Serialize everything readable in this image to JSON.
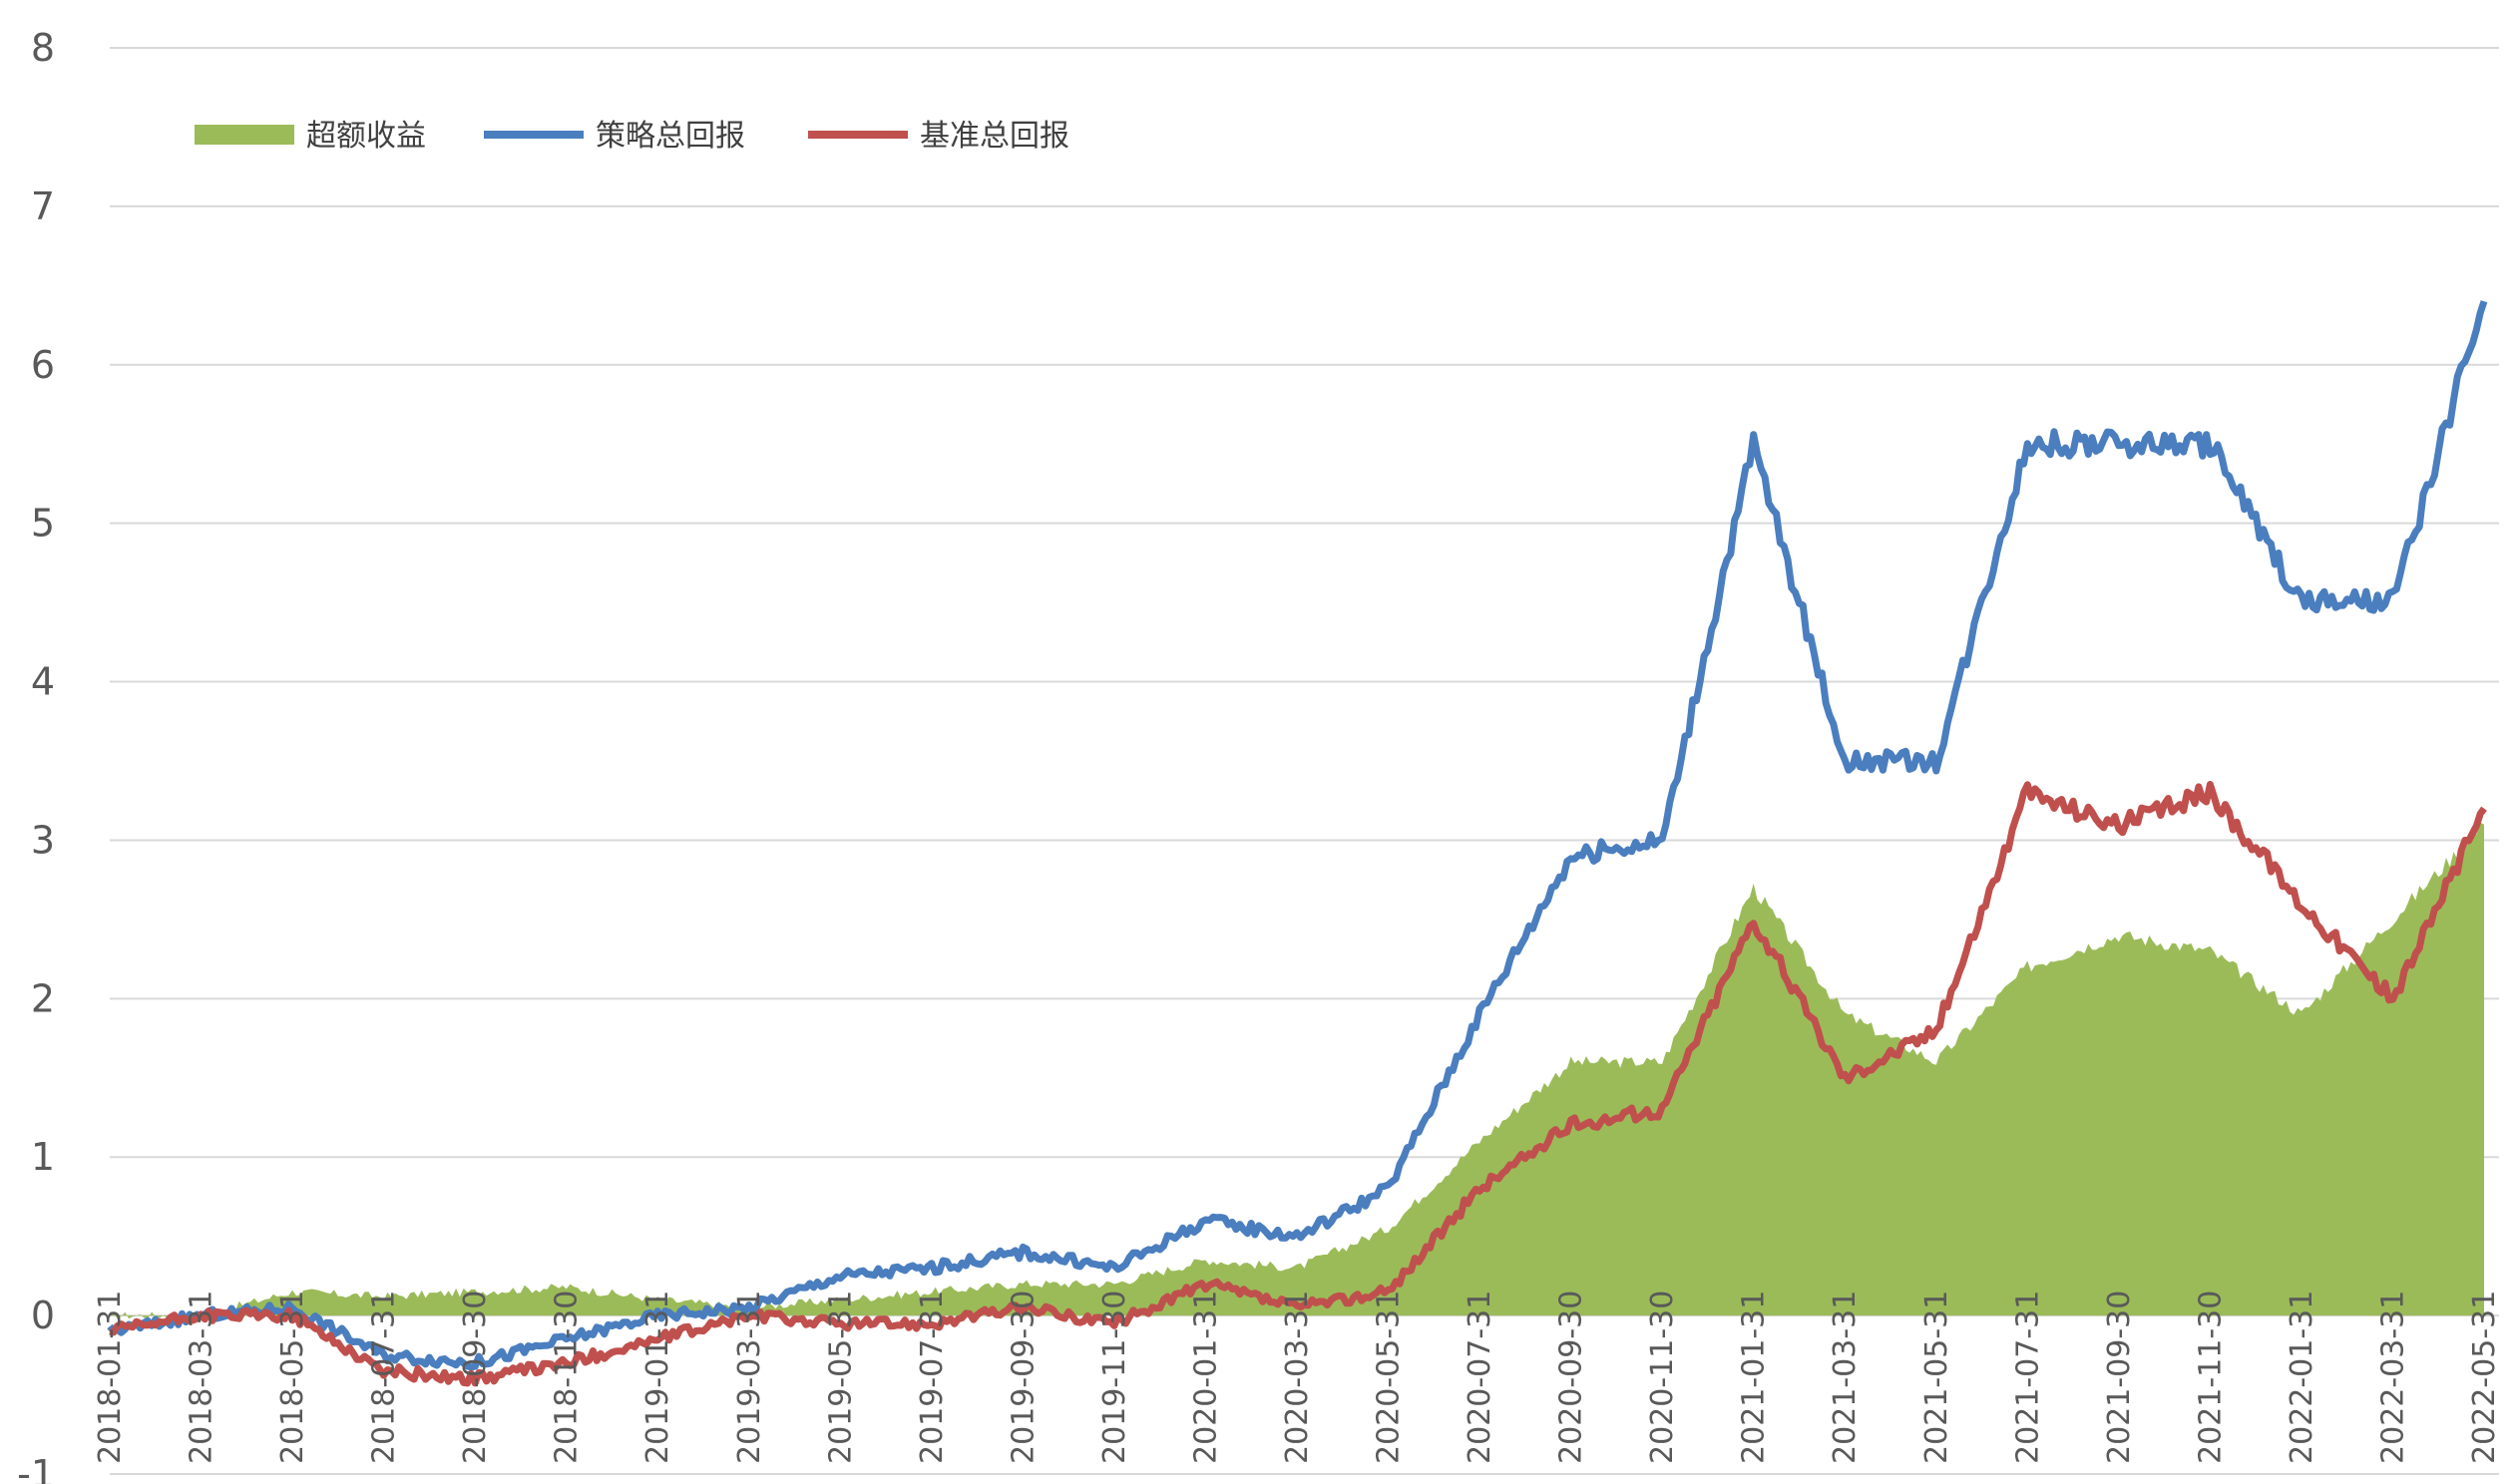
{
  "chart_data": {
    "type": "line",
    "title": "",
    "xlabel": "",
    "ylabel": "",
    "ylim": [
      -1,
      8
    ],
    "yticks": [
      "-1",
      "0",
      "1",
      "2",
      "3",
      "4",
      "5",
      "6",
      "7",
      "8"
    ],
    "grid": true,
    "legend_position": "top-left",
    "categories": [
      "2018-01-31",
      "2018-03-31",
      "2018-05-31",
      "2018-07-31",
      "2018-09-30",
      "2018-11-30",
      "2019-01-31",
      "2019-03-31",
      "2019-05-31",
      "2019-07-31",
      "2019-09-30",
      "2019-11-30",
      "2020-01-31",
      "2020-03-31",
      "2020-05-31",
      "2020-07-31",
      "2020-09-30",
      "2020-11-30",
      "2021-01-31",
      "2021-03-31",
      "2021-05-31",
      "2021-07-31",
      "2021-09-30",
      "2021-11-30",
      "2022-01-31",
      "2022-03-31",
      "2022-05-31"
    ],
    "tick_labels": [
      "2018-01-31",
      "2018-03-31",
      "2018-05-31",
      "2018-07-31",
      "2018-09-30",
      "2018-11-30",
      "2019-01-31",
      "2019-03-31",
      "2019-05-31",
      "2019-07-31",
      "2019-09-30",
      "2019-11-30",
      "2020-01-31",
      "2020-03-31",
      "2020-05-31",
      "2020-07-31",
      "2020-09-30",
      "2020-11-30",
      "2021-01-31",
      "2021-03-31",
      "2021-05-31",
      "2021-07-31",
      "2021-09-30",
      "2021-11-30",
      "2022-01-31",
      "2022-03-31",
      "2022-05-31"
    ],
    "series": [
      {
        "name": "超额收益",
        "kind": "area",
        "color": "#9bbb59",
        "values": [
          0,
          0,
          0.15,
          0.12,
          0.15,
          0.18,
          0.1,
          0.05,
          0.1,
          0.15,
          0.2,
          0.2,
          0.35,
          0.3,
          0.55,
          1.1,
          1.6,
          1.6,
          2.7,
          1.9,
          1.6,
          2.2,
          2.4,
          2.3,
          1.9,
          2.5,
          3.1
        ]
      },
      {
        "name": "策略总回报",
        "kind": "line",
        "color": "#4a7ebf",
        "values": [
          -0.1,
          0,
          0.05,
          -0.25,
          -0.3,
          -0.15,
          0,
          0.05,
          0.25,
          0.3,
          0.4,
          0.3,
          0.6,
          0.5,
          0.8,
          1.9,
          2.9,
          3.0,
          5.5,
          3.5,
          3.5,
          5.5,
          5.5,
          5.5,
          4.5,
          4.5,
          6.4
        ]
      },
      {
        "name": "基准总回报",
        "kind": "line",
        "color": "#c0504d",
        "values": [
          -0.1,
          0,
          0,
          -0.35,
          -0.4,
          -0.3,
          -0.15,
          0,
          -0.05,
          -0.05,
          0.05,
          -0.05,
          0.2,
          0.05,
          0.15,
          0.8,
          1.2,
          1.3,
          2.5,
          1.5,
          1.8,
          3.3,
          3.1,
          3.3,
          2.6,
          2.0,
          3.2
        ]
      }
    ]
  }
}
